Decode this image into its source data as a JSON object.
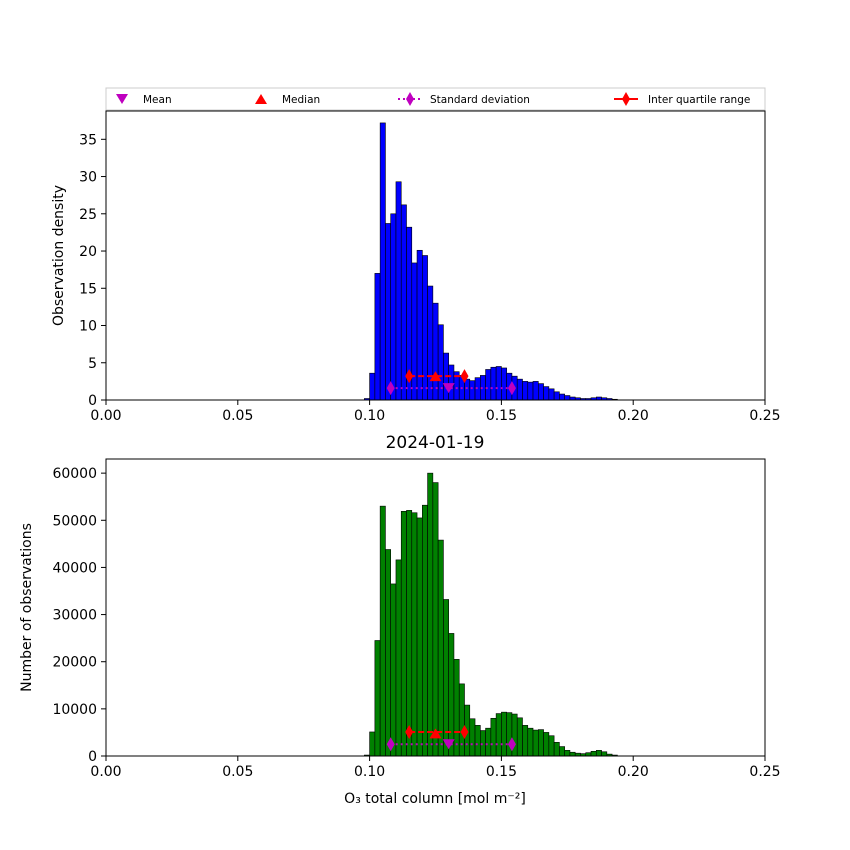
{
  "figure_title": "2024-01-19",
  "legend": {
    "mean": "Mean",
    "median": "Median",
    "std": "Standard deviation",
    "iqr": "Inter quartile range"
  },
  "colors": {
    "top_bars": "#0000ff",
    "bottom_bars": "#008000",
    "mean_marker": "#bf00bf",
    "median_marker": "#ff0000",
    "std_marker": "#bf00bf",
    "iqr_marker": "#ff0000"
  },
  "chart_data": [
    {
      "type": "bar",
      "subtype": "histogram",
      "title": "",
      "xlabel": "",
      "ylabel": "Observation density",
      "xlim": [
        0,
        0.25
      ],
      "ylim": [
        0,
        38.8
      ],
      "xticks": [
        "0.00",
        "0.05",
        "0.10",
        "0.15",
        "0.20",
        "0.25"
      ],
      "yticks": [
        "0",
        "5",
        "10",
        "15",
        "20",
        "25",
        "30",
        "35"
      ],
      "bin_start": 0.098,
      "bin_width": 0.002,
      "values": [
        0.2,
        3.6,
        17.0,
        37.2,
        23.7,
        25.0,
        29.3,
        26.2,
        23.2,
        18.4,
        20.1,
        19.4,
        15.3,
        13.0,
        10.1,
        6.3,
        4.7,
        3.8,
        3.3,
        2.8,
        2.6,
        3.0,
        3.3,
        4.1,
        4.4,
        4.5,
        4.3,
        3.6,
        3.2,
        2.8,
        2.5,
        2.4,
        2.5,
        2.2,
        1.8,
        1.5,
        1.1,
        0.8,
        0.6,
        0.4,
        0.3,
        0.2,
        0.2,
        0.3,
        0.4,
        0.3,
        0.2,
        0.1
      ],
      "stats": {
        "mean": 0.13,
        "median": 0.125,
        "std_range": [
          0.108,
          0.154
        ],
        "iqr_range": [
          0.115,
          0.136
        ],
        "std_marker_y": 1.6,
        "mean_marker_y": 1.6,
        "median_marker_y": 3.2,
        "iqr_marker_y": 3.2
      }
    },
    {
      "type": "bar",
      "subtype": "histogram",
      "title": "2024-01-19",
      "xlabel": "O₃ total column [mol m⁻²]",
      "ylabel": "Number of observations",
      "xlim": [
        0,
        0.25
      ],
      "ylim": [
        0,
        63000
      ],
      "xticks": [
        "0.00",
        "0.05",
        "0.10",
        "0.15",
        "0.20",
        "0.25"
      ],
      "yticks": [
        "0",
        "10000",
        "20000",
        "30000",
        "40000",
        "50000",
        "60000"
      ],
      "bin_start": 0.098,
      "bin_width": 0.002,
      "values": [
        200,
        5100,
        24500,
        53000,
        43800,
        36500,
        41600,
        51900,
        52100,
        51600,
        50500,
        53200,
        60000,
        58000,
        45800,
        33200,
        26000,
        20500,
        15300,
        10800,
        7900,
        6500,
        5400,
        5900,
        8000,
        9000,
        9300,
        9200,
        8900,
        8100,
        6500,
        5900,
        5500,
        5600,
        5000,
        4300,
        2900,
        2000,
        1200,
        800,
        600,
        500,
        700,
        1000,
        1200,
        900,
        400,
        200
      ],
      "stats": {
        "mean": 0.13,
        "median": 0.125,
        "std_range": [
          0.108,
          0.154
        ],
        "iqr_range": [
          0.115,
          0.136
        ],
        "std_marker_y": 2500,
        "mean_marker_y": 2500,
        "median_marker_y": 4800,
        "iqr_marker_y": 5100
      }
    }
  ]
}
